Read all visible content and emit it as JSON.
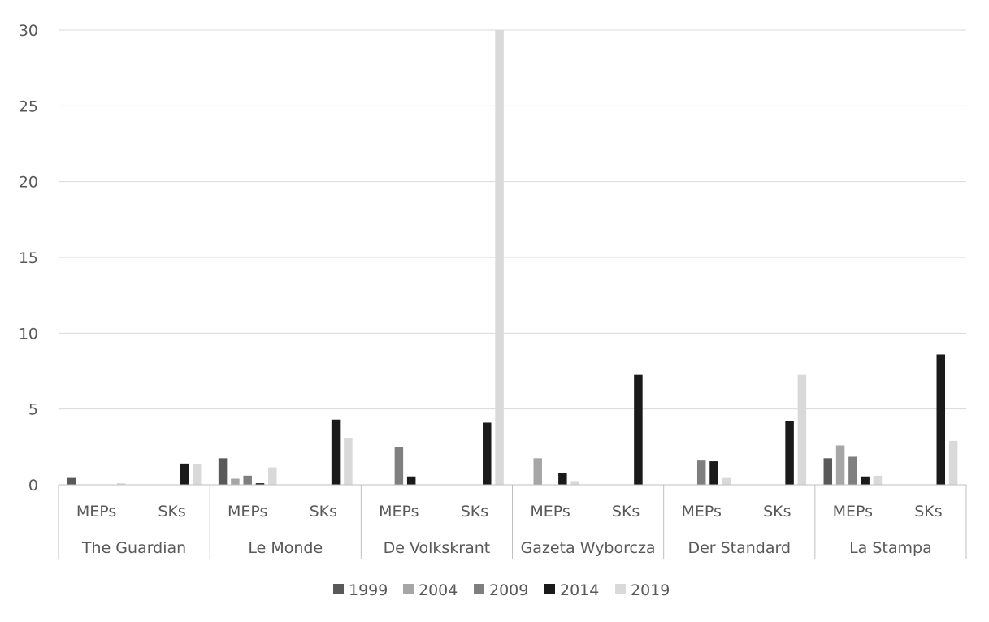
{
  "chart_data": {
    "type": "bar",
    "title": "",
    "xlabel": "",
    "ylabel": "",
    "ylim": [
      0,
      30
    ],
    "yticks": [
      "0",
      "5",
      "10",
      "15",
      "20",
      "25",
      "30"
    ],
    "grid": true,
    "legend_position": "bottom",
    "groups": [
      {
        "label": "The Guardian",
        "subcategories": [
          "MEPs",
          "SKs"
        ]
      },
      {
        "label": "Le Monde",
        "subcategories": [
          "MEPs",
          "SKs"
        ]
      },
      {
        "label": "De Volkskrant",
        "subcategories": [
          "MEPs",
          "SKs"
        ]
      },
      {
        "label": "Gazeta Wyborcza",
        "subcategories": [
          "MEPs",
          "SKs"
        ]
      },
      {
        "label": "Der Standard",
        "subcategories": [
          "MEPs",
          "SKs"
        ]
      },
      {
        "label": "La Stampa",
        "subcategories": [
          "MEPs",
          "SKs"
        ]
      }
    ],
    "categories": [
      "The Guardian MEPs",
      "The Guardian SKs",
      "Le Monde MEPs",
      "Le Monde SKs",
      "De Volkskrant MEPs",
      "De Volkskrant SKs",
      "Gazeta Wyborcza MEPs",
      "Gazeta Wyborcza SKs",
      "Der Standard MEPs",
      "Der Standard SKs",
      "La Stampa MEPs",
      "La Stampa SKs"
    ],
    "series": [
      {
        "name": "1999",
        "color": "#595959",
        "values": [
          0.45,
          0,
          1.75,
          0,
          0,
          0,
          0,
          0,
          0,
          0,
          1.75,
          0
        ]
      },
      {
        "name": "2004",
        "color": "#a6a6a6",
        "values": [
          0,
          0,
          0.4,
          0,
          0,
          0,
          1.75,
          0,
          0,
          0,
          2.6,
          0
        ]
      },
      {
        "name": "2009",
        "color": "#7f7f7f",
        "values": [
          0,
          0,
          0.6,
          0,
          2.5,
          0,
          0,
          0,
          1.6,
          0,
          1.85,
          0
        ]
      },
      {
        "name": "2014",
        "color": "#1a1a1a",
        "values": [
          0,
          1.4,
          0.1,
          4.3,
          0.55,
          4.1,
          0.75,
          7.25,
          1.55,
          4.2,
          0.55,
          8.6
        ]
      },
      {
        "name": "2019",
        "color": "#d9d9d9",
        "values": [
          0.1,
          1.35,
          1.15,
          3.05,
          0,
          30,
          0.25,
          0,
          0.45,
          7.25,
          0.6,
          2.9
        ]
      }
    ]
  }
}
